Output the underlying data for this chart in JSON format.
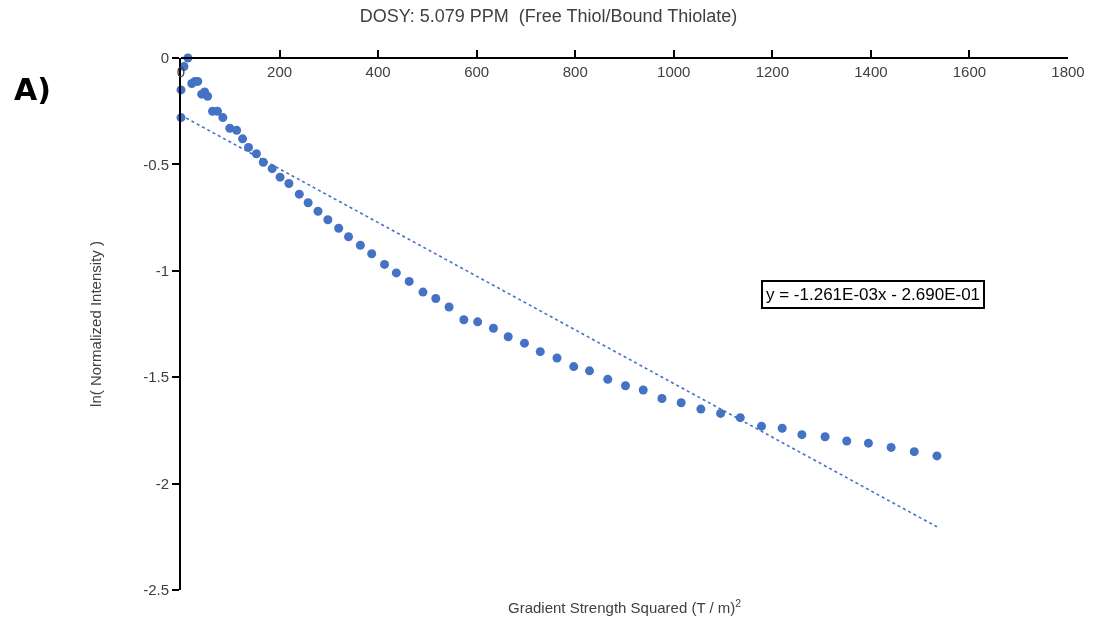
{
  "chart_data": {
    "type": "scatter",
    "title": "DOSY: 5.079 PPM  (Free Thiol/Bound Thiolate)",
    "xlabel": "Gradient Strength Squared (T / m)$^{2}$",
    "ylabel": "ln( Normalized Intensity )",
    "annotations": [
      "A)",
      "y = -1.261E-03x - 2.690E-01"
    ],
    "series": [
      {
        "color": "#4472c4",
        "marker": "circle",
        "x": [
          0,
          0,
          6,
          14,
          22,
          28,
          34,
          42,
          48,
          54,
          64,
          74,
          85,
          99,
          113,
          125,
          137,
          153,
          167,
          185,
          201,
          219,
          240,
          258,
          278,
          298,
          320,
          340,
          364,
          387,
          413,
          437,
          463,
          491,
          517,
          544,
          574,
          602,
          634,
          664,
          697,
          729,
          763,
          797,
          829,
          866,
          902,
          938,
          976,
          1015,
          1055,
          1095,
          1135,
          1178,
          1220,
          1260,
          1307,
          1351,
          1395,
          1441,
          1488,
          1534
        ],
        "values": [
          -0.15,
          -0.28,
          -0.04,
          0,
          -0.12,
          -0.11,
          -0.11,
          -0.17,
          -0.16,
          -0.18,
          -0.25,
          -0.25,
          -0.28,
          -0.33,
          -0.34,
          -0.38,
          -0.42,
          -0.45,
          -0.49,
          -0.52,
          -0.56,
          -0.59,
          -0.64,
          -0.68,
          -0.72,
          -0.76,
          -0.8,
          -0.84,
          -0.88,
          -0.92,
          -0.97,
          -1.01,
          -1.05,
          -1.1,
          -1.13,
          -1.17,
          -1.23,
          -1.24,
          -1.27,
          -1.31,
          -1.34,
          -1.38,
          -1.41,
          -1.45,
          -1.47,
          -1.51,
          -1.54,
          -1.56,
          -1.6,
          -1.62,
          -1.65,
          -1.67,
          -1.69,
          -1.73,
          -1.74,
          -1.77,
          -1.78,
          -1.8,
          -1.81,
          -1.83,
          -1.85,
          -1.87
        ]
      },
      {
        "type": "line",
        "color": "#4472c4",
        "line_style": "dotted",
        "x": [
          0,
          1534
        ],
        "values": [
          -0.269,
          -2.203
        ]
      }
    ],
    "xlim": [
      0,
      1800
    ],
    "xticks": [
      0,
      200,
      400,
      600,
      800,
      1000,
      1200,
      1400,
      1600,
      1800
    ],
    "ylim": [
      -2.5,
      0
    ],
    "yticks": [
      0,
      -0.5,
      -1,
      -1.5,
      -2,
      -2.5
    ],
    "grid": false
  }
}
